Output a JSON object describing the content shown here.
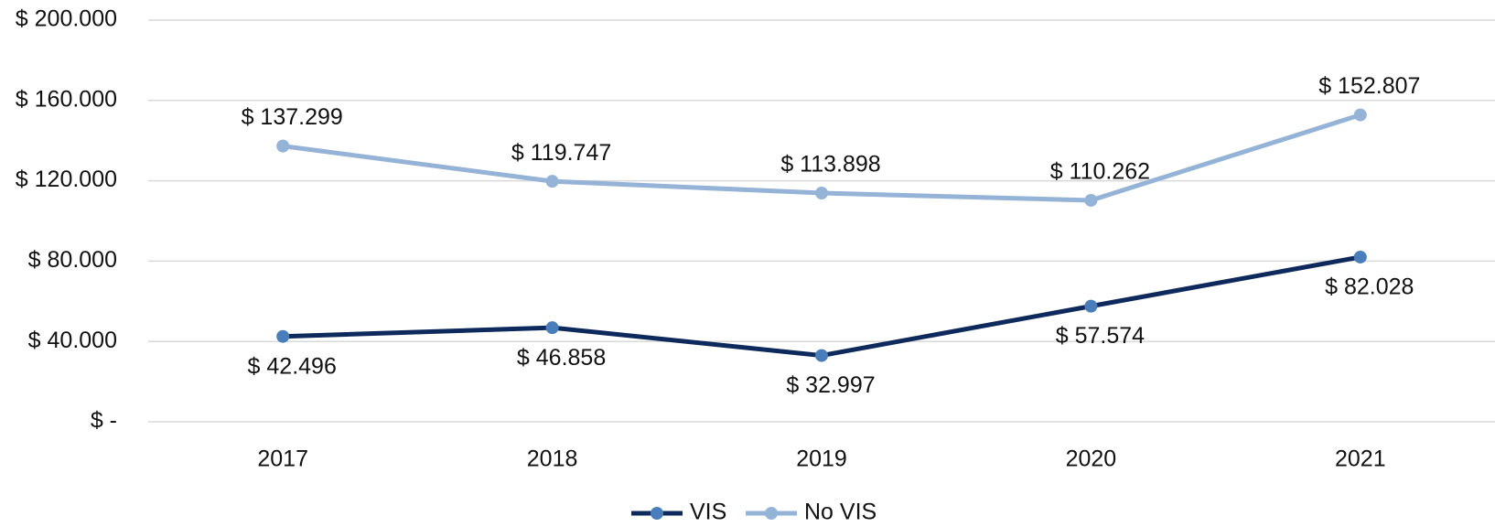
{
  "chart_data": {
    "type": "line",
    "categories": [
      "2017",
      "2018",
      "2019",
      "2020",
      "2021"
    ],
    "series": [
      {
        "name": "VIS",
        "color": "#0e2a5c",
        "marker_color": "#4a7ebb",
        "values": [
          42496,
          46858,
          32997,
          57574,
          82028
        ],
        "value_labels": [
          "$ 42.496",
          "$ 46.858",
          "$ 32.997",
          "$ 57.574",
          "$ 82.028"
        ]
      },
      {
        "name": "No VIS",
        "color": "#95b3d7",
        "marker_color": "#95b3d7",
        "values": [
          137299,
          119747,
          113898,
          110262,
          152807
        ],
        "value_labels": [
          "$ 137.299",
          "$ 119.747",
          "$ 113.898",
          "$ 110.262",
          "$ 152.807"
        ]
      }
    ],
    "ylim": [
      0,
      200000
    ],
    "yticks": [
      {
        "value": 0,
        "label": "$ -"
      },
      {
        "value": 40000,
        "label": "$ 40.000"
      },
      {
        "value": 80000,
        "label": "$ 80.000"
      },
      {
        "value": 120000,
        "label": "$ 120.000"
      },
      {
        "value": 160000,
        "label": "$ 160.000"
      },
      {
        "value": 200000,
        "label": "$ 200.000"
      }
    ],
    "grid": true,
    "legend": "bottom"
  }
}
